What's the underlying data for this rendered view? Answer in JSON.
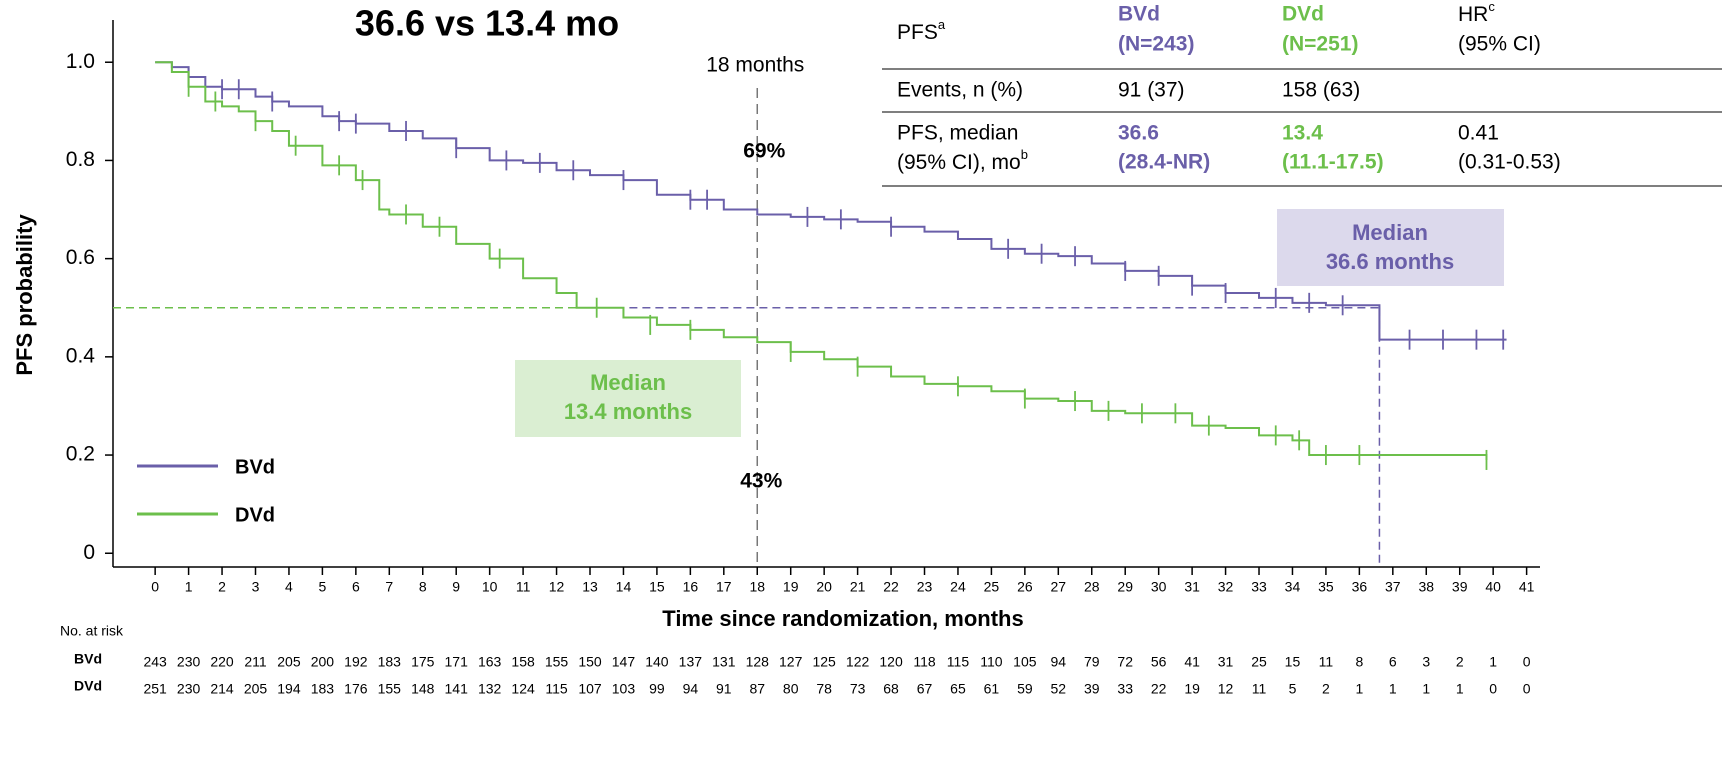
{
  "chart_data": {
    "type": "km",
    "title": "36.6 vs 13.4 mo",
    "x_label": "Time since randomization, months",
    "y_label": "PFS probability",
    "xlim": [
      -1.26,
      41.4
    ],
    "ylim": [
      -0.028,
      1.086
    ],
    "xticks": [
      0,
      1,
      2,
      3,
      4,
      5,
      6,
      7,
      8,
      9,
      10,
      11,
      12,
      13,
      14,
      15,
      16,
      17,
      18,
      19,
      20,
      21,
      22,
      23,
      24,
      25,
      26,
      27,
      28,
      29,
      30,
      31,
      32,
      33,
      34,
      35,
      36,
      37,
      38,
      39,
      40,
      41
    ],
    "yticks": [
      0,
      0.2,
      0.4,
      0.6,
      0.8,
      {
        "value": 1,
        "label": "1.0"
      }
    ],
    "series": [
      {
        "name": "BVd",
        "color": "#6a5fa9",
        "x": [
          0,
          0.5,
          1,
          1.5,
          2,
          3,
          3.5,
          4,
          5,
          5.5,
          6,
          7,
          8,
          9,
          10,
          11,
          12,
          13,
          14,
          15,
          16,
          17,
          18,
          19,
          20,
          21,
          22,
          23,
          24,
          25,
          26,
          27,
          28,
          29,
          30,
          31,
          32,
          33,
          34,
          35,
          36,
          36.6,
          40.4
        ],
        "values": [
          1,
          0.99,
          0.97,
          0.95,
          0.945,
          0.93,
          0.92,
          0.91,
          0.89,
          0.88,
          0.875,
          0.86,
          0.845,
          0.825,
          0.8,
          0.795,
          0.78,
          0.77,
          0.76,
          0.73,
          0.72,
          0.7,
          0.69,
          0.685,
          0.68,
          0.675,
          0.665,
          0.655,
          0.64,
          0.62,
          0.61,
          0.605,
          0.59,
          0.575,
          0.565,
          0.545,
          0.53,
          0.52,
          0.51,
          0.505,
          0.505,
          0.435,
          0.435
        ],
        "censor_x": [
          1,
          2,
          2.5,
          3.5,
          5.5,
          6,
          7.5,
          9,
          10.5,
          11.5,
          12.5,
          14,
          16,
          16.5,
          19.5,
          20.5,
          22,
          25.5,
          26.5,
          27.5,
          29,
          30,
          31,
          32,
          33.5,
          34.5,
          35.5,
          37.5,
          38.5,
          39.5,
          40.3
        ],
        "censor_y": [
          0.97,
          0.945,
          0.945,
          0.92,
          0.88,
          0.875,
          0.86,
          0.825,
          0.8,
          0.795,
          0.78,
          0.76,
          0.72,
          0.72,
          0.685,
          0.68,
          0.665,
          0.62,
          0.61,
          0.605,
          0.575,
          0.565,
          0.545,
          0.53,
          0.52,
          0.51,
          0.505,
          0.435,
          0.435,
          0.435,
          0.435
        ],
        "at_risk": [
          243,
          230,
          220,
          211,
          205,
          200,
          192,
          183,
          175,
          171,
          163,
          158,
          155,
          150,
          147,
          140,
          137,
          131,
          128,
          127,
          125,
          122,
          120,
          118,
          115,
          110,
          105,
          94,
          79,
          72,
          56,
          41,
          31,
          25,
          15,
          11,
          8,
          6,
          3,
          2,
          1,
          0
        ]
      },
      {
        "name": "DVd",
        "color": "#6cbf4b",
        "x": [
          0,
          0.5,
          1,
          1.5,
          2,
          2.5,
          3,
          3.5,
          4,
          5,
          6,
          6.7,
          7,
          8,
          9,
          10,
          11,
          12,
          12.6,
          13.4,
          14,
          15,
          16,
          17,
          18,
          19,
          20,
          21,
          22,
          23,
          24,
          25,
          26,
          27,
          28,
          29,
          30,
          31,
          32,
          33,
          34,
          34.5,
          39.8
        ],
        "values": [
          1,
          0.98,
          0.95,
          0.92,
          0.91,
          0.9,
          0.88,
          0.86,
          0.83,
          0.79,
          0.76,
          0.7,
          0.69,
          0.665,
          0.63,
          0.6,
          0.56,
          0.53,
          0.5,
          0.5,
          0.48,
          0.465,
          0.455,
          0.44,
          0.43,
          0.41,
          0.395,
          0.38,
          0.36,
          0.345,
          0.34,
          0.33,
          0.315,
          0.31,
          0.29,
          0.285,
          0.285,
          0.26,
          0.255,
          0.24,
          0.23,
          0.2,
          0.19
        ],
        "censor_x": [
          1,
          1.8,
          3,
          4.2,
          5.5,
          6.2,
          7.5,
          8.5,
          10.3,
          13.2,
          14.8,
          16,
          19,
          21,
          24,
          26,
          27.5,
          28.5,
          29.5,
          30.5,
          31.5,
          33.5,
          34.2,
          35,
          36,
          39.8
        ],
        "censor_y": [
          0.95,
          0.92,
          0.88,
          0.83,
          0.79,
          0.76,
          0.69,
          0.665,
          0.6,
          0.5,
          0.465,
          0.455,
          0.41,
          0.38,
          0.34,
          0.315,
          0.31,
          0.29,
          0.285,
          0.285,
          0.26,
          0.24,
          0.23,
          0.2,
          0.2,
          0.19
        ],
        "at_risk": [
          251,
          230,
          214,
          205,
          194,
          183,
          176,
          155,
          148,
          141,
          132,
          124,
          115,
          107,
          103,
          99,
          94,
          91,
          87,
          80,
          78,
          73,
          68,
          67,
          65,
          61,
          59,
          52,
          39,
          33,
          22,
          19,
          12,
          11,
          5,
          2,
          1,
          1,
          1,
          1,
          0,
          0
        ]
      }
    ],
    "median_marks": {
      "y": 0.5,
      "x": [
        36.6,
        13.4
      ]
    },
    "median_boxes": [
      [
        "Median",
        "36.6 months"
      ],
      [
        "Median",
        "13.4 months"
      ]
    ],
    "landmark": {
      "x": 18,
      "label": "18 months",
      "value_labels": [
        "69%",
        "43%"
      ]
    },
    "at_risk_title": "No. at risk",
    "summary_table": {
      "header": [
        {
          "lines": [
            "PFS"
          ],
          "sup": "a"
        },
        {
          "lines": [
            "BVd",
            "(N=243)"
          ]
        },
        {
          "lines": [
            "DVd",
            "(N=251)"
          ]
        },
        {
          "lines": [
            "HR",
            "(95% CI)"
          ],
          "sup": "c"
        }
      ],
      "rows": [
        [
          {
            "lines": [
              "Events, n (%)"
            ]
          },
          {
            "lines": [
              "91 (37)"
            ]
          },
          {
            "lines": [
              "158 (63)"
            ]
          }
        ],
        [
          {
            "lines": [
              "PFS, median",
              "(95% CI), mo"
            ],
            "sup": "b"
          },
          {
            "lines": [
              "36.6",
              "(28.4-NR)"
            ]
          },
          {
            "lines": [
              "13.4",
              "(11.1-17.5)"
            ]
          },
          {
            "lines": [
              "0.41",
              "(0.31-0.53)"
            ]
          }
        ]
      ]
    }
  }
}
